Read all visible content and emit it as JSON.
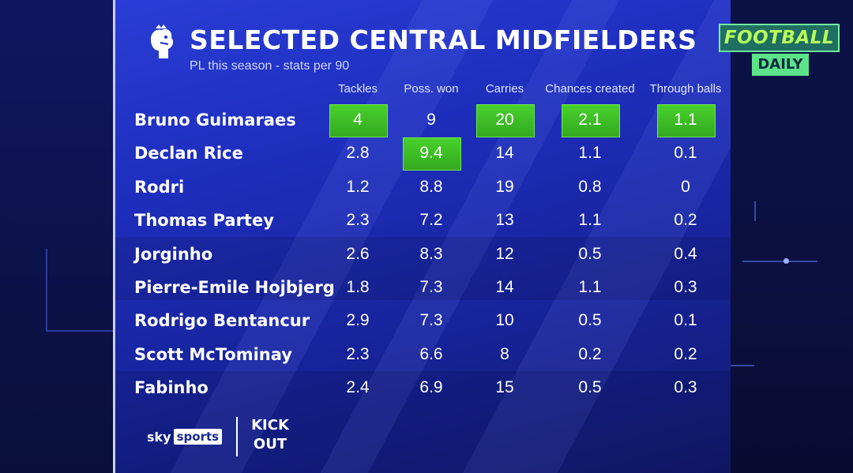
{
  "header": {
    "title": "SELECTED CENTRAL MIDFIELDERS",
    "subtitle": "PL this season - stats per 90"
  },
  "branding": {
    "show_football": "FOOTBALL",
    "show_daily": "DAILY",
    "sky_word": "sky",
    "sky_box": "sports",
    "kick_out_lines": [
      "KICK",
      "OUT"
    ]
  },
  "colors": {
    "panel": "#1e2fbe",
    "highlight": "#3fbf26",
    "text": "#ffffff"
  },
  "chart_data": {
    "type": "table",
    "title": "SELECTED CENTRAL MIDFIELDERS",
    "subtitle": "PL this season - stats per 90",
    "columns": [
      "Tackles",
      "Poss. won",
      "Carries",
      "Chances created",
      "Through balls"
    ],
    "rows": [
      {
        "name": "Bruno Guimaraes",
        "values": [
          "4",
          "9",
          "20",
          "2.1",
          "1.1"
        ],
        "highlight": [
          true,
          false,
          true,
          true,
          true
        ]
      },
      {
        "name": "Declan Rice",
        "values": [
          "2.8",
          "9.4",
          "14",
          "1.1",
          "0.1"
        ],
        "highlight": [
          false,
          true,
          false,
          false,
          false
        ]
      },
      {
        "name": "Rodri",
        "values": [
          "1.2",
          "8.8",
          "19",
          "0.8",
          "0"
        ],
        "highlight": [
          false,
          false,
          false,
          false,
          false
        ]
      },
      {
        "name": "Thomas Partey",
        "values": [
          "2.3",
          "7.2",
          "13",
          "1.1",
          "0.2"
        ],
        "highlight": [
          false,
          false,
          false,
          false,
          false
        ]
      },
      {
        "name": "Jorginho",
        "values": [
          "2.6",
          "8.3",
          "12",
          "0.5",
          "0.4"
        ],
        "highlight": [
          false,
          false,
          false,
          false,
          false
        ]
      },
      {
        "name": "Pierre-Emile Hojbjerg",
        "values": [
          "1.8",
          "7.3",
          "14",
          "1.1",
          "0.3"
        ],
        "highlight": [
          false,
          false,
          false,
          false,
          false
        ]
      },
      {
        "name": "Rodrigo Bentancur",
        "values": [
          "2.9",
          "7.3",
          "10",
          "0.5",
          "0.1"
        ],
        "highlight": [
          false,
          false,
          false,
          false,
          false
        ]
      },
      {
        "name": "Scott McTominay",
        "values": [
          "2.3",
          "6.6",
          "8",
          "0.2",
          "0.2"
        ],
        "highlight": [
          false,
          false,
          false,
          false,
          false
        ]
      },
      {
        "name": "Fabinho",
        "values": [
          "2.4",
          "6.9",
          "15",
          "0.5",
          "0.3"
        ],
        "highlight": [
          false,
          false,
          false,
          false,
          false
        ]
      }
    ]
  }
}
